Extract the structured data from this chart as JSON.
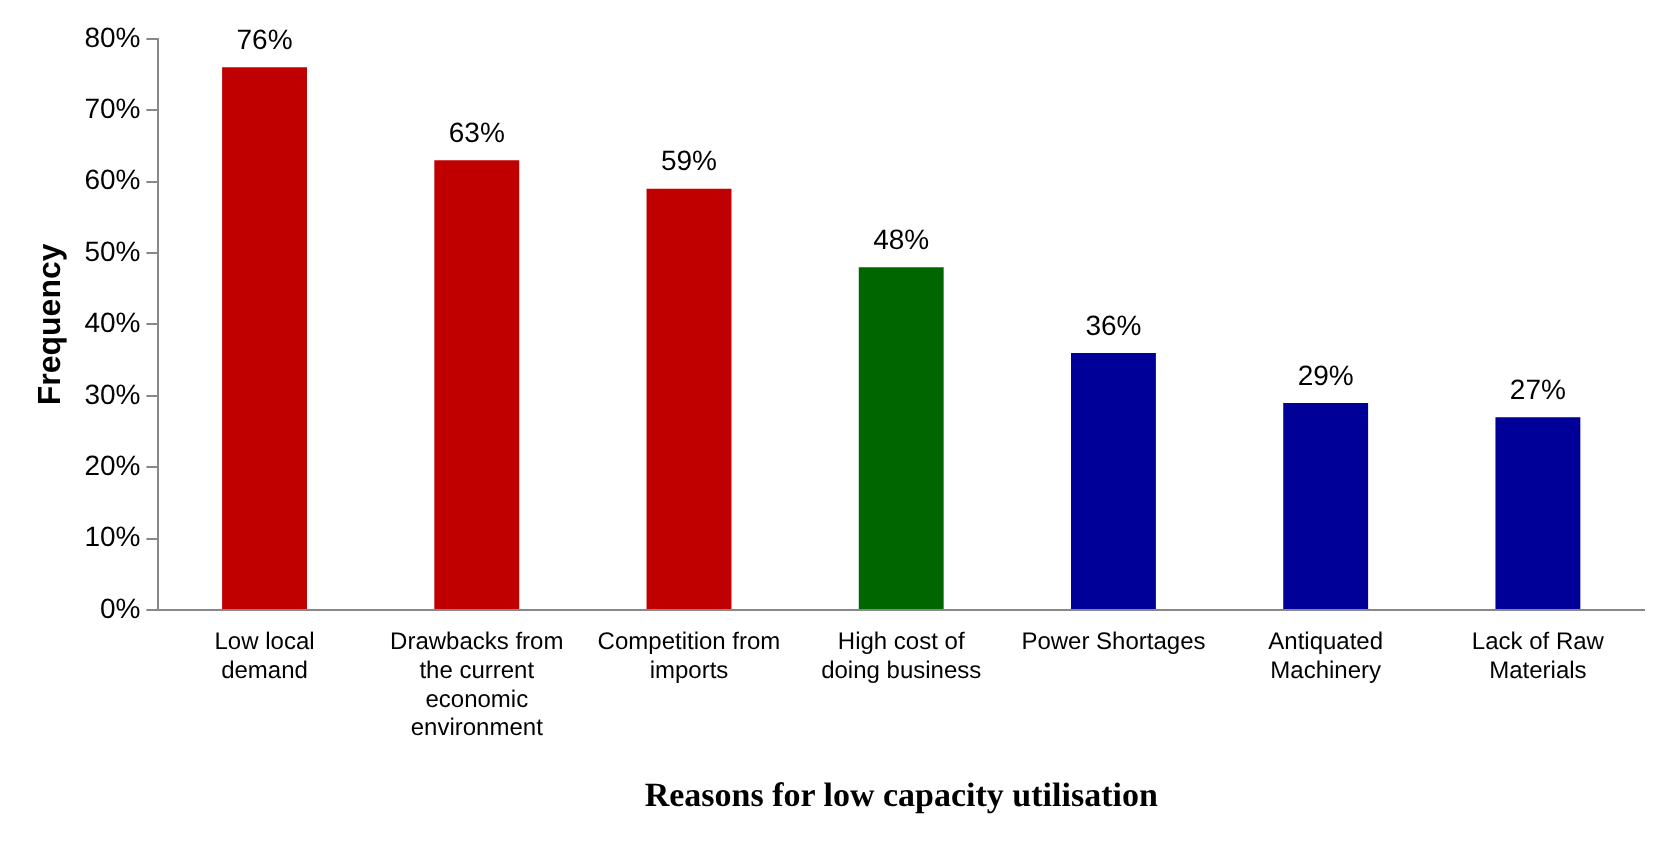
{
  "chart_data": {
    "type": "bar",
    "xlabel": "Reasons for low capacity utilisation",
    "ylabel": "Frequency",
    "categories": [
      "Low local demand",
      "Drawbacks from the current economic environment",
      "Competition from imports",
      "High cost of doing business",
      "Power Shortages",
      "Antiquated Machinery",
      "Lack of Raw Materials"
    ],
    "values": [
      76,
      63,
      59,
      48,
      36,
      29,
      27
    ],
    "colors": [
      "#c00000",
      "#c00000",
      "#c00000",
      "#006600",
      "#000099",
      "#000099",
      "#000099"
    ],
    "value_labels": [
      "76%",
      "63%",
      "59%",
      "48%",
      "36%",
      "29%",
      "27%"
    ],
    "ylim": [
      0,
      80
    ],
    "yticks": [
      {
        "value": 0,
        "label": "0%"
      },
      {
        "value": 10,
        "label": "10%"
      },
      {
        "value": 20,
        "label": "20%"
      },
      {
        "value": 30,
        "label": "30%"
      },
      {
        "value": 40,
        "label": "40%"
      },
      {
        "value": 50,
        "label": "50%"
      },
      {
        "value": 60,
        "label": "60%"
      },
      {
        "value": 70,
        "label": "70%"
      },
      {
        "value": 80,
        "label": "80%"
      }
    ],
    "grid": false,
    "legend": false
  }
}
